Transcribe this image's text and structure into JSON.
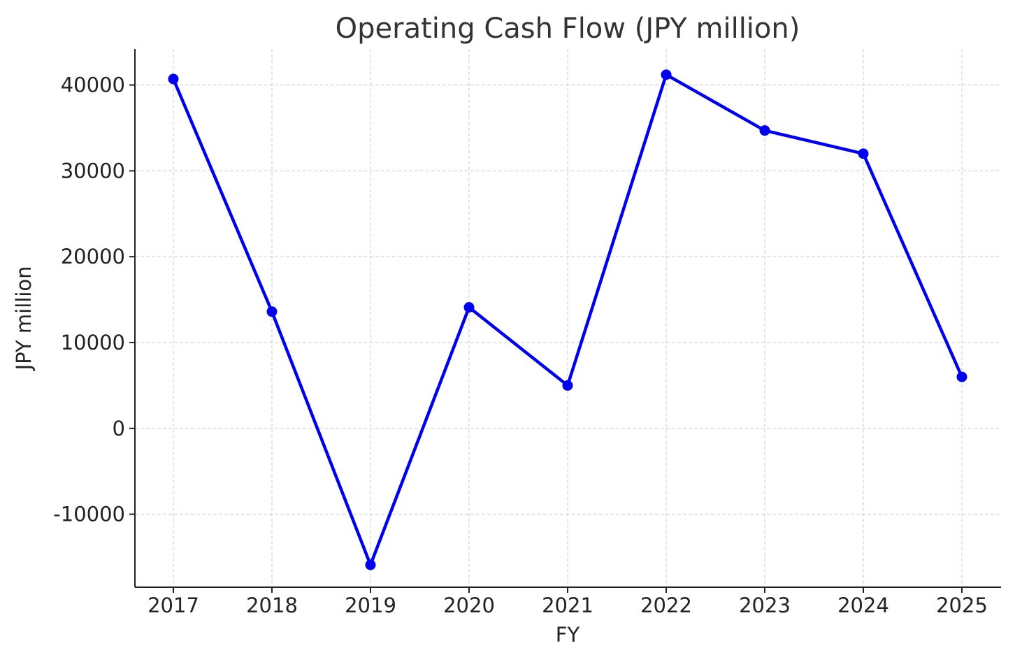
{
  "chart_data": {
    "type": "line",
    "title": "Operating Cash Flow (JPY million)",
    "xlabel": "FY",
    "ylabel": "JPY million",
    "categories": [
      "2017",
      "2018",
      "2019",
      "2020",
      "2021",
      "2022",
      "2023",
      "2024",
      "2025"
    ],
    "series": [
      {
        "values": [
          40700,
          13600,
          -15900,
          14100,
          5000,
          41200,
          34700,
          32000,
          6000
        ],
        "color": "#0000ee"
      }
    ],
    "yticks": [
      -10000,
      0,
      10000,
      20000,
      30000,
      40000
    ],
    "ylim": [
      -18500,
      44200
    ],
    "grid": true,
    "legend": "none"
  }
}
